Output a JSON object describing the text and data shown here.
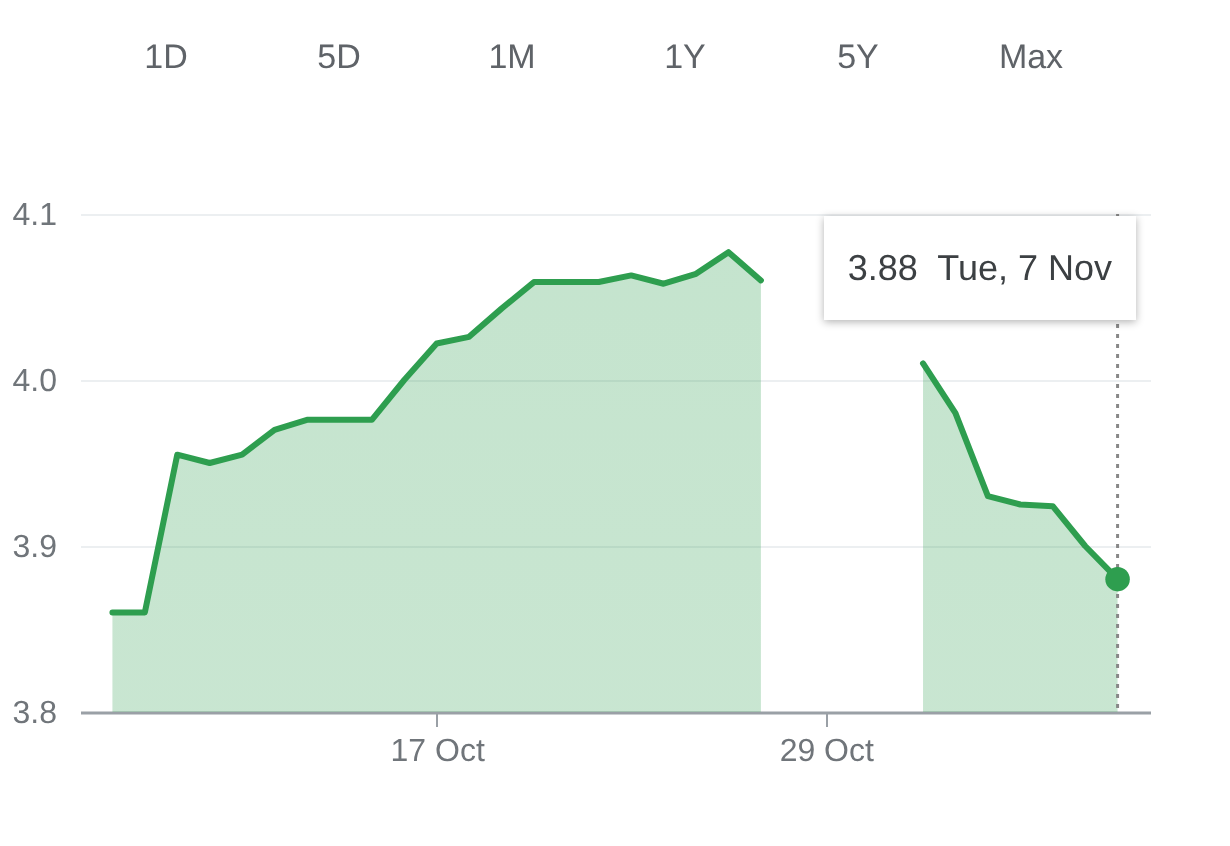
{
  "chart_data": {
    "type": "area",
    "x": [
      "--10-07",
      "--10-08",
      "--10-09",
      "--10-10",
      "--10-11",
      "--10-12",
      "--10-13",
      "--10-14",
      "--10-15",
      "--10-16",
      "--10-17",
      "--10-18",
      "--10-19",
      "--10-20",
      "--10-21",
      "--10-22",
      "--10-23",
      "--10-24",
      "--10-25",
      "--10-26",
      "--10-27",
      "--10-28",
      "--10-29",
      "--10-30",
      "--10-31",
      "--11-01",
      "--11-02",
      "--11-03",
      "--11-04",
      "--11-05",
      "--11-06",
      "--11-07"
    ],
    "series": [
      {
        "color": "#2e9e4f",
        "values": [
          3.86,
          3.86,
          3.955,
          3.95,
          3.955,
          3.97,
          3.976,
          3.976,
          3.976,
          4.0,
          4.022,
          4.026,
          4.043,
          4.059,
          4.059,
          4.059,
          4.063,
          4.058,
          4.064,
          4.077,
          4.06,
          null,
          null,
          null,
          null,
          4.01,
          3.98,
          3.93,
          3.925,
          3.924,
          3.9,
          3.88
        ]
      }
    ],
    "xlim": [
      "--10-06",
      "--11-08"
    ],
    "xticks": [
      {
        "value": "--10-17",
        "label": "17 Oct"
      },
      {
        "value": "--10-29",
        "label": "29 Oct"
      }
    ],
    "ylim": [
      3.8,
      4.1
    ],
    "yticks": [
      3.8,
      3.9,
      {
        "value": 4,
        "label": "4.0"
      },
      4.1
    ],
    "grid": "y",
    "ref_lines": [
      {
        "axis": "x",
        "value": "--11-07",
        "line_style": "dotted",
        "color": "#888888"
      }
    ],
    "annotations": [
      "3.88  Tue, 7 Nov",
      "1D",
      "5D",
      "1M",
      "1Y",
      "5Y",
      "Max"
    ]
  }
}
